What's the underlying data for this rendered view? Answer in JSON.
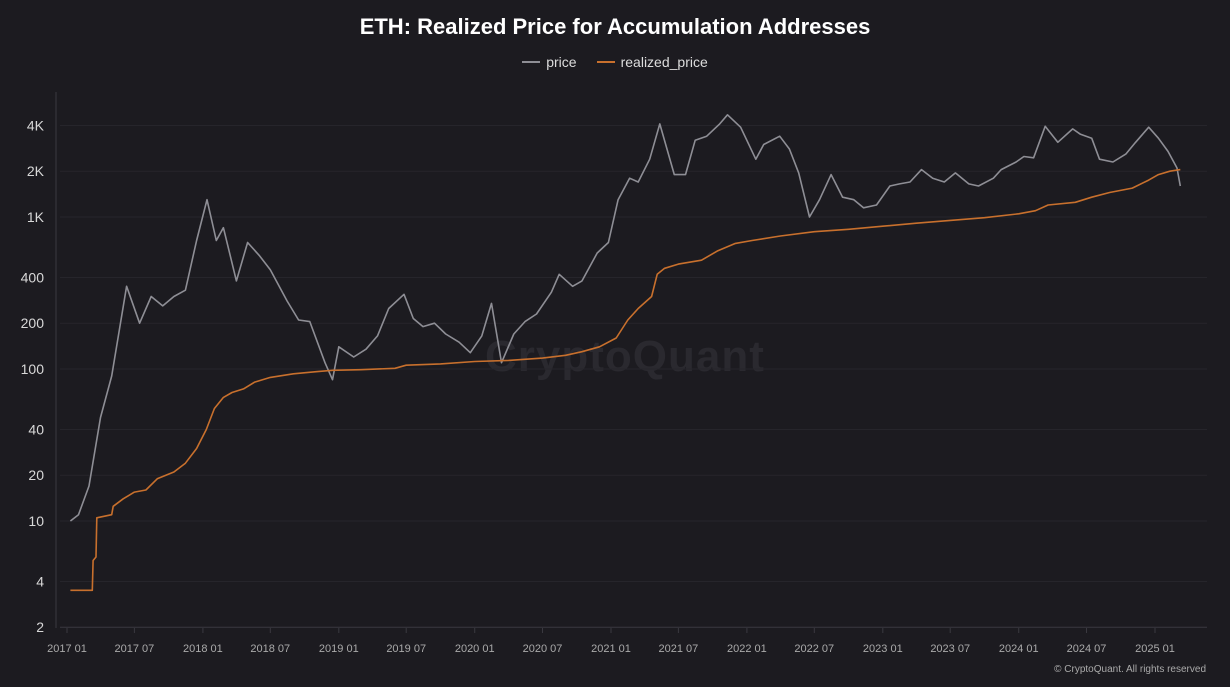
{
  "chart_data": {
    "type": "line",
    "title": "ETH: Realized Price for Accumulation Addresses",
    "y_scale": "log",
    "ylim": [
      2,
      5600
    ],
    "xlim": [
      "2017-01-01",
      "2025-03-15"
    ],
    "grid": true,
    "legend_placement": "top-center",
    "y_ticks": [
      {
        "v": 4000,
        "label": "4K"
      },
      {
        "v": 2000,
        "label": "2K"
      },
      {
        "v": 1000,
        "label": "1K"
      },
      {
        "v": 400,
        "label": "400"
      },
      {
        "v": 200,
        "label": "200"
      },
      {
        "v": 100,
        "label": "100"
      },
      {
        "v": 40,
        "label": "40"
      },
      {
        "v": 20,
        "label": "20"
      },
      {
        "v": 10,
        "label": "10"
      },
      {
        "v": 4,
        "label": "4"
      },
      {
        "v": 2,
        "label": "2"
      }
    ],
    "x_ticks": [
      "2017 01",
      "2017 07",
      "2018 01",
      "2018 07",
      "2019 01",
      "2019 07",
      "2020 01",
      "2020 07",
      "2021 01",
      "2021 07",
      "2022 01",
      "2022 07",
      "2023 01",
      "2023 07",
      "2024 01",
      "2024 07",
      "2025 01"
    ],
    "series": [
      {
        "name": "price",
        "color": "#8e8e95",
        "points": [
          [
            "2017-01-10",
            10
          ],
          [
            "2017-02-01",
            11
          ],
          [
            "2017-03-01",
            17
          ],
          [
            "2017-04-01",
            48
          ],
          [
            "2017-05-01",
            90
          ],
          [
            "2017-06-10",
            350
          ],
          [
            "2017-07-15",
            200
          ],
          [
            "2017-08-15",
            300
          ],
          [
            "2017-09-15",
            260
          ],
          [
            "2017-10-15",
            300
          ],
          [
            "2017-11-15",
            330
          ],
          [
            "2017-12-15",
            700
          ],
          [
            "2018-01-12",
            1300
          ],
          [
            "2018-02-06",
            700
          ],
          [
            "2018-02-25",
            850
          ],
          [
            "2018-04-01",
            380
          ],
          [
            "2018-05-01",
            680
          ],
          [
            "2018-06-01",
            560
          ],
          [
            "2018-07-01",
            450
          ],
          [
            "2018-08-15",
            280
          ],
          [
            "2018-09-15",
            210
          ],
          [
            "2018-10-15",
            205
          ],
          [
            "2018-11-25",
            110
          ],
          [
            "2018-12-15",
            85
          ],
          [
            "2019-01-01",
            140
          ],
          [
            "2019-02-10",
            120
          ],
          [
            "2019-03-15",
            135
          ],
          [
            "2019-04-15",
            165
          ],
          [
            "2019-05-15",
            250
          ],
          [
            "2019-06-25",
            310
          ],
          [
            "2019-07-20",
            215
          ],
          [
            "2019-08-15",
            190
          ],
          [
            "2019-09-15",
            200
          ],
          [
            "2019-10-15",
            170
          ],
          [
            "2019-11-20",
            150
          ],
          [
            "2019-12-20",
            128
          ],
          [
            "2020-01-20",
            165
          ],
          [
            "2020-02-15",
            270
          ],
          [
            "2020-03-13",
            110
          ],
          [
            "2020-04-15",
            170
          ],
          [
            "2020-05-15",
            205
          ],
          [
            "2020-06-15",
            230
          ],
          [
            "2020-07-25",
            320
          ],
          [
            "2020-08-15",
            420
          ],
          [
            "2020-09-20",
            350
          ],
          [
            "2020-10-15",
            380
          ],
          [
            "2020-11-25",
            580
          ],
          [
            "2020-12-25",
            680
          ],
          [
            "2021-01-20",
            1300
          ],
          [
            "2021-02-20",
            1800
          ],
          [
            "2021-03-15",
            1700
          ],
          [
            "2021-04-15",
            2400
          ],
          [
            "2021-05-12",
            4100
          ],
          [
            "2021-06-20",
            1900
          ],
          [
            "2021-07-20",
            1900
          ],
          [
            "2021-08-15",
            3200
          ],
          [
            "2021-09-15",
            3400
          ],
          [
            "2021-10-20",
            4100
          ],
          [
            "2021-11-10",
            4700
          ],
          [
            "2021-12-15",
            3900
          ],
          [
            "2022-01-25",
            2400
          ],
          [
            "2022-02-15",
            3000
          ],
          [
            "2022-03-30",
            3400
          ],
          [
            "2022-04-25",
            2800
          ],
          [
            "2022-05-20",
            1950
          ],
          [
            "2022-06-18",
            1000
          ],
          [
            "2022-07-15",
            1300
          ],
          [
            "2022-08-15",
            1900
          ],
          [
            "2022-09-15",
            1350
          ],
          [
            "2022-10-15",
            1300
          ],
          [
            "2022-11-10",
            1150
          ],
          [
            "2022-12-15",
            1200
          ],
          [
            "2023-01-20",
            1600
          ],
          [
            "2023-02-15",
            1650
          ],
          [
            "2023-03-15",
            1700
          ],
          [
            "2023-04-15",
            2050
          ],
          [
            "2023-05-15",
            1800
          ],
          [
            "2023-06-15",
            1700
          ],
          [
            "2023-07-15",
            1950
          ],
          [
            "2023-08-20",
            1650
          ],
          [
            "2023-09-15",
            1600
          ],
          [
            "2023-10-25",
            1800
          ],
          [
            "2023-11-15",
            2050
          ],
          [
            "2023-12-25",
            2300
          ],
          [
            "2024-01-15",
            2500
          ],
          [
            "2024-02-10",
            2450
          ],
          [
            "2024-03-12",
            3950
          ],
          [
            "2024-04-15",
            3100
          ],
          [
            "2024-05-25",
            3800
          ],
          [
            "2024-06-15",
            3500
          ],
          [
            "2024-07-15",
            3300
          ],
          [
            "2024-08-05",
            2400
          ],
          [
            "2024-09-10",
            2300
          ],
          [
            "2024-10-15",
            2600
          ],
          [
            "2024-11-10",
            3100
          ],
          [
            "2024-12-15",
            3900
          ],
          [
            "2025-01-10",
            3300
          ],
          [
            "2025-02-05",
            2700
          ],
          [
            "2025-03-01",
            2100
          ],
          [
            "2025-03-10",
            1600
          ]
        ]
      },
      {
        "name": "realized_price",
        "color": "#c8702d",
        "points": [
          [
            "2017-01-10",
            3.5
          ],
          [
            "2017-03-10",
            3.5
          ],
          [
            "2017-03-12",
            5.5
          ],
          [
            "2017-03-20",
            5.8
          ],
          [
            "2017-03-22",
            10.5
          ],
          [
            "2017-05-01",
            11
          ],
          [
            "2017-05-05",
            12.5
          ],
          [
            "2017-06-01",
            14
          ],
          [
            "2017-07-01",
            15.5
          ],
          [
            "2017-08-01",
            16
          ],
          [
            "2017-09-01",
            19
          ],
          [
            "2017-10-15",
            21
          ],
          [
            "2017-11-15",
            24
          ],
          [
            "2017-12-15",
            30
          ],
          [
            "2018-01-10",
            40
          ],
          [
            "2018-02-01",
            55
          ],
          [
            "2018-02-25",
            65
          ],
          [
            "2018-03-20",
            70
          ],
          [
            "2018-04-20",
            74
          ],
          [
            "2018-05-20",
            82
          ],
          [
            "2018-07-01",
            88
          ],
          [
            "2018-09-01",
            93
          ],
          [
            "2018-11-01",
            96
          ],
          [
            "2018-12-15",
            98
          ],
          [
            "2019-03-01",
            99
          ],
          [
            "2019-06-01",
            101
          ],
          [
            "2019-07-01",
            106
          ],
          [
            "2019-10-01",
            108
          ],
          [
            "2020-01-01",
            112
          ],
          [
            "2020-04-01",
            114
          ],
          [
            "2020-07-01",
            118
          ],
          [
            "2020-09-01",
            123
          ],
          [
            "2020-10-15",
            130
          ],
          [
            "2020-12-01",
            140
          ],
          [
            "2021-01-15",
            160
          ],
          [
            "2021-02-15",
            210
          ],
          [
            "2021-03-15",
            250
          ],
          [
            "2021-04-20",
            300
          ],
          [
            "2021-05-05",
            420
          ],
          [
            "2021-05-25",
            460
          ],
          [
            "2021-07-01",
            490
          ],
          [
            "2021-09-01",
            520
          ],
          [
            "2021-10-15",
            600
          ],
          [
            "2021-12-01",
            670
          ],
          [
            "2022-01-15",
            700
          ],
          [
            "2022-04-01",
            750
          ],
          [
            "2022-07-01",
            800
          ],
          [
            "2022-10-01",
            830
          ],
          [
            "2023-01-01",
            870
          ],
          [
            "2023-04-01",
            910
          ],
          [
            "2023-07-01",
            950
          ],
          [
            "2023-10-01",
            990
          ],
          [
            "2024-01-01",
            1050
          ],
          [
            "2024-02-15",
            1100
          ],
          [
            "2024-03-20",
            1200
          ],
          [
            "2024-06-01",
            1250
          ],
          [
            "2024-07-15",
            1350
          ],
          [
            "2024-09-01",
            1450
          ],
          [
            "2024-11-01",
            1550
          ],
          [
            "2024-12-15",
            1750
          ],
          [
            "2025-01-10",
            1900
          ],
          [
            "2025-02-10",
            2000
          ],
          [
            "2025-03-10",
            2050
          ]
        ]
      }
    ]
  },
  "watermark": "CryptoQuant",
  "footer": {
    "copyright": "© CryptoQuant. All rights reserved"
  }
}
